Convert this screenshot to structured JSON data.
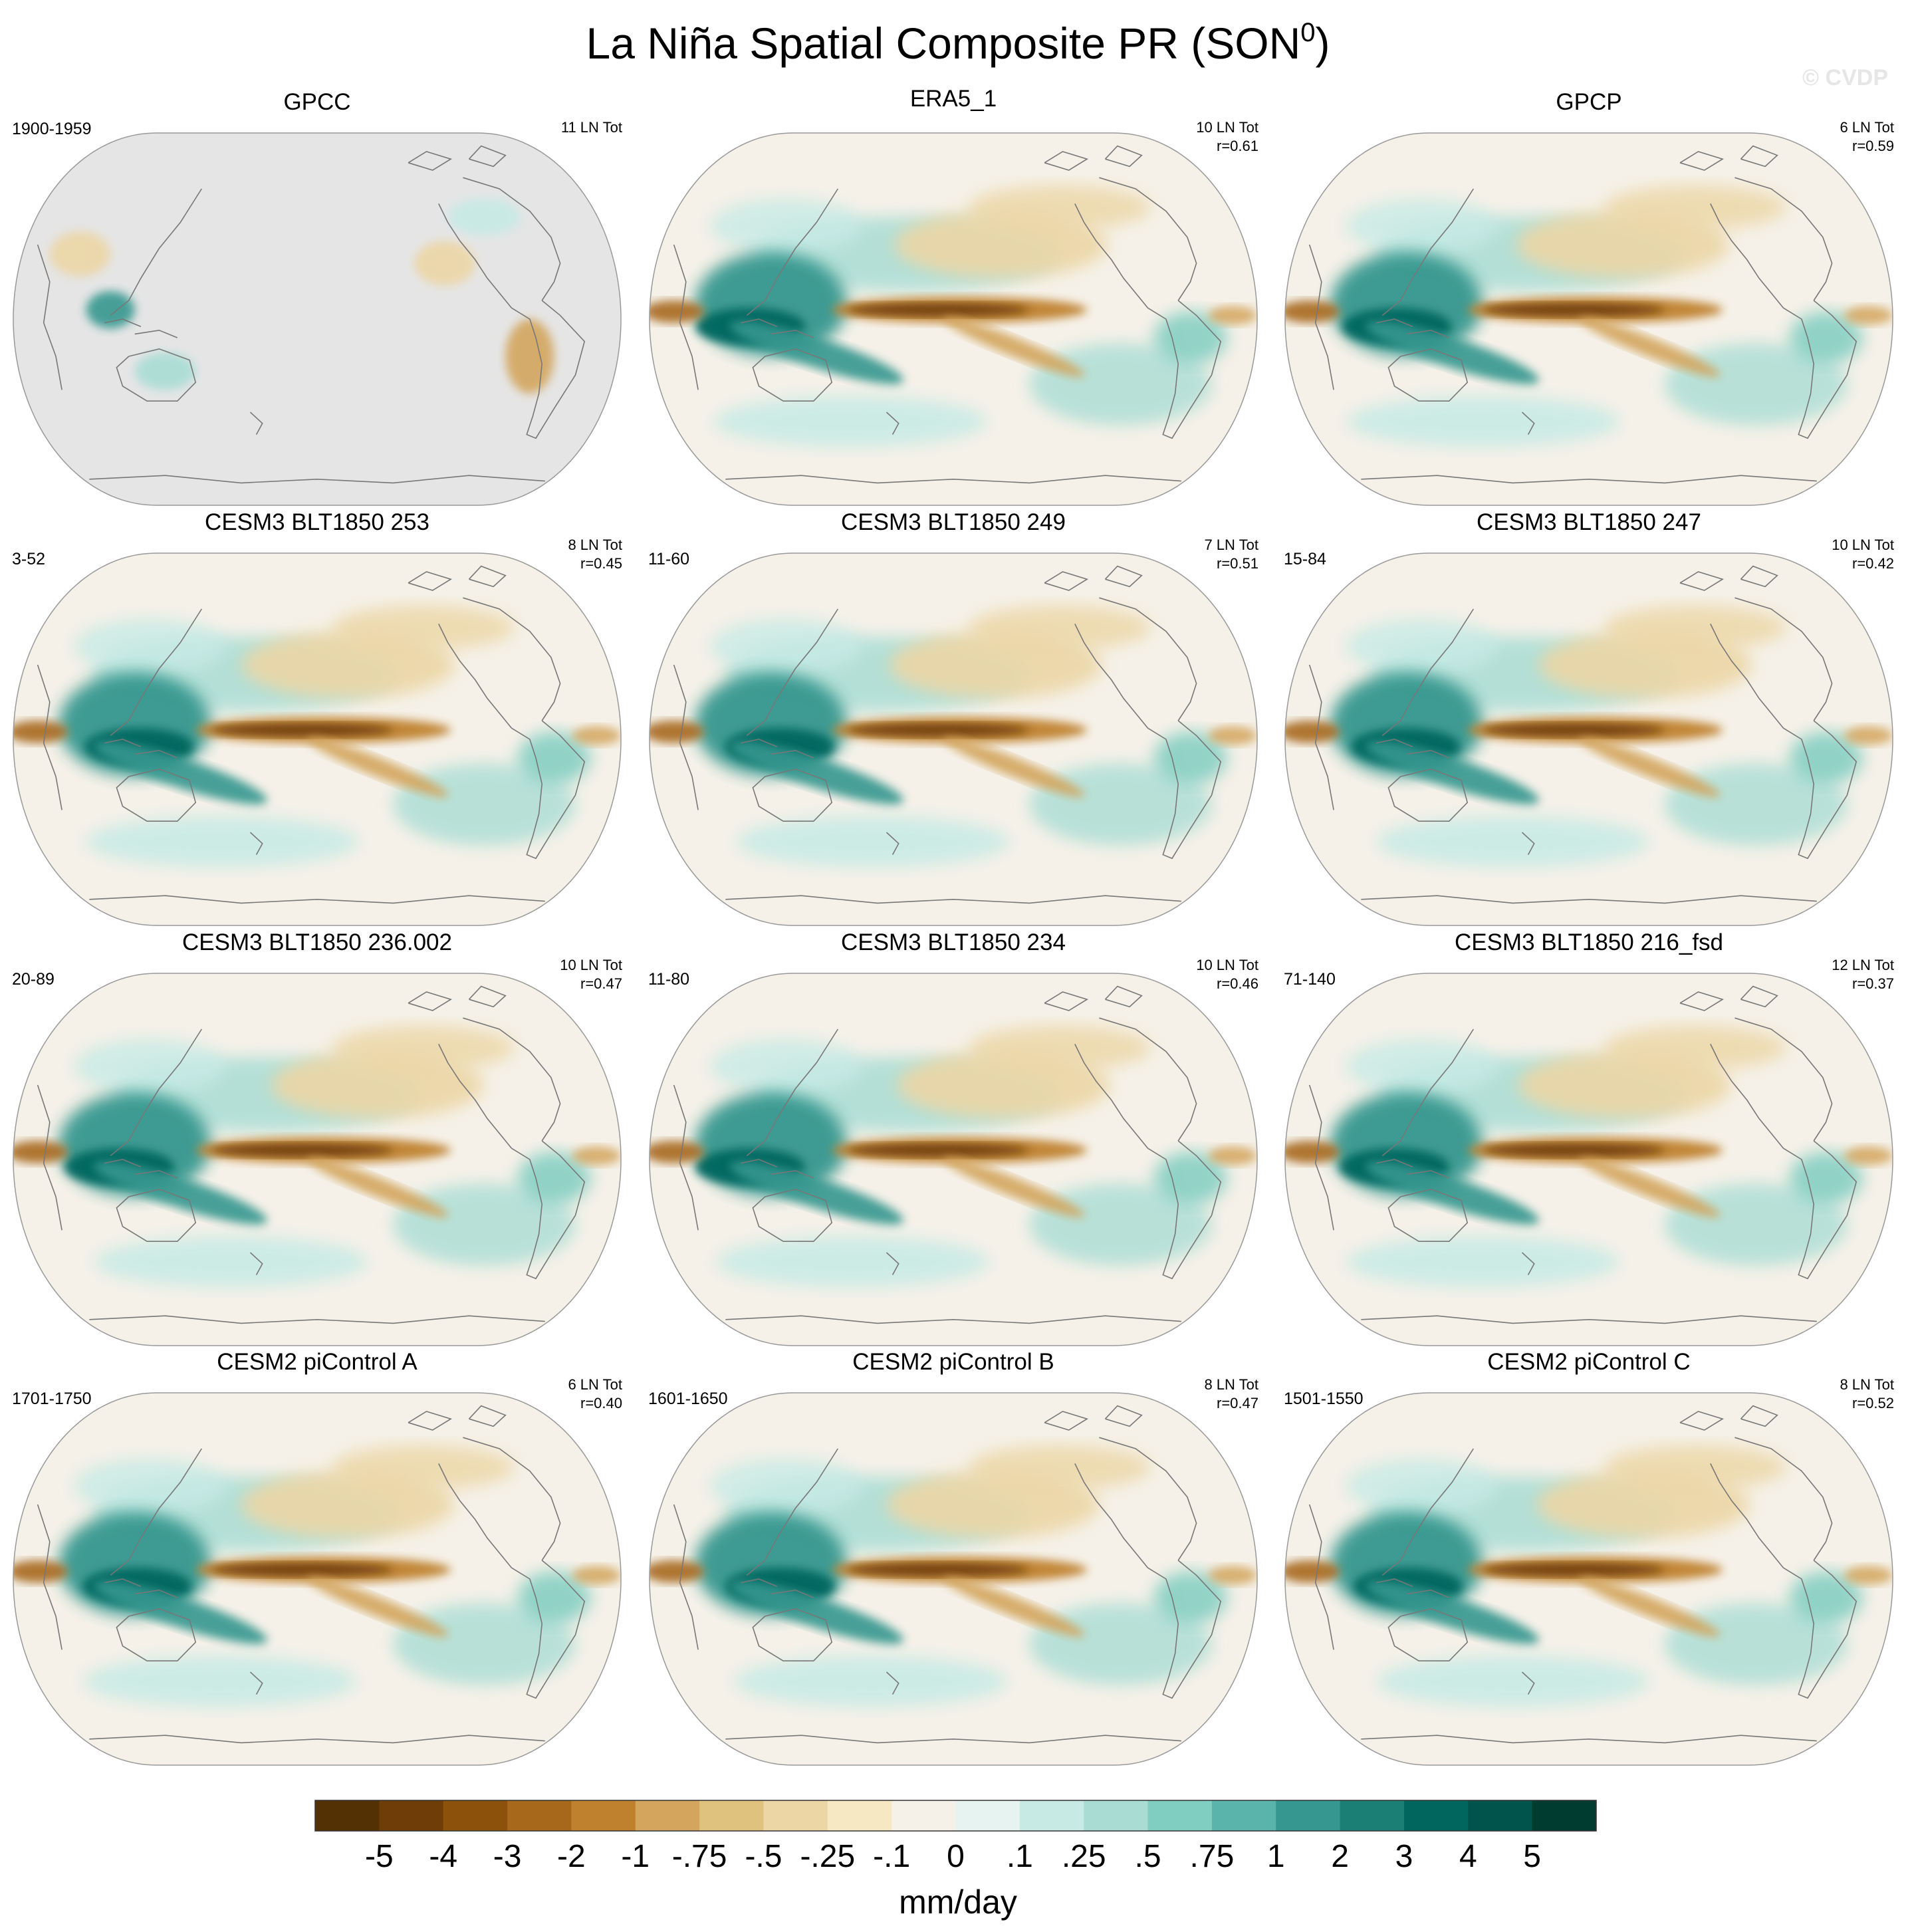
{
  "figure": {
    "title_main": "La Niña Spatial Composite PR (SON",
    "title_superscript": "0",
    "title_close": ")",
    "watermark": "© CVDP"
  },
  "chart_data": {
    "type": "heatmap",
    "projection": "Robinson, Pacific-centered",
    "variable": "Precipitation composite anomaly",
    "units": "mm/day",
    "colorbar": {
      "tick_labels": [
        "-5",
        "-4",
        "-3",
        "-2",
        "-1",
        "-.75",
        "-.5",
        "-.25",
        "-.1",
        "0",
        ".1",
        ".25",
        ".5",
        ".75",
        "1",
        "2",
        "3",
        "4",
        "5"
      ],
      "levels": [
        -5,
        -4,
        -3,
        -2,
        -1,
        -0.75,
        -0.5,
        -0.25,
        -0.1,
        0,
        0.1,
        0.25,
        0.5,
        0.75,
        1,
        2,
        3,
        4,
        5
      ],
      "colors": [
        "#543005",
        "#6e3d08",
        "#8c510a",
        "#a7681b",
        "#bf812d",
        "#d3a55d",
        "#dfc27d",
        "#ecd6a5",
        "#f6e8c3",
        "#f5f1e8",
        "#e6f3f0",
        "#c7eae5",
        "#a9ddd4",
        "#80cdc1",
        "#5ab4ac",
        "#35978f",
        "#1b7f76",
        "#01665e",
        "#01544b",
        "#003c30"
      ],
      "label": "mm/day"
    },
    "panels": [
      {
        "title": "GPCC",
        "period": "1900-1959",
        "events": "11 LN Tot",
        "r": "",
        "data": "land"
      },
      {
        "title": "ERA5_1",
        "period": "",
        "events": "10 LN Tot",
        "r": "r=0.61",
        "data": "full"
      },
      {
        "title": "GPCP",
        "period": "",
        "events": "6 LN Tot",
        "r": "r=0.59",
        "data": "full"
      },
      {
        "title": "CESM3 BLT1850 253",
        "period": "3-52",
        "events": "8 LN Tot",
        "r": "r=0.45",
        "data": "full"
      },
      {
        "title": "CESM3 BLT1850 249",
        "period": "11-60",
        "events": "7 LN Tot",
        "r": "r=0.51",
        "data": "full"
      },
      {
        "title": "CESM3 BLT1850 247",
        "period": "15-84",
        "events": "10 LN Tot",
        "r": "r=0.42",
        "data": "full"
      },
      {
        "title": "CESM3 BLT1850 236.002",
        "period": "20-89",
        "events": "10 LN Tot",
        "r": "r=0.47",
        "data": "full"
      },
      {
        "title": "CESM3 BLT1850 234",
        "period": "11-80",
        "events": "10 LN Tot",
        "r": "r=0.46",
        "data": "full"
      },
      {
        "title": "CESM3 BLT1850 216_fsd",
        "period": "71-140",
        "events": "12 LN Tot",
        "r": "r=0.37",
        "data": "full"
      },
      {
        "title": "CESM2 piControl A",
        "period": "1701-1750",
        "events": "6 LN Tot",
        "r": "r=0.40",
        "data": "full"
      },
      {
        "title": "CESM2 piControl B",
        "period": "1601-1650",
        "events": "8 LN Tot",
        "r": "r=0.47",
        "data": "full"
      },
      {
        "title": "CESM2 piControl C",
        "period": "1501-1550",
        "events": "8 LN Tot",
        "r": "r=0.52",
        "data": "full"
      }
    ]
  }
}
